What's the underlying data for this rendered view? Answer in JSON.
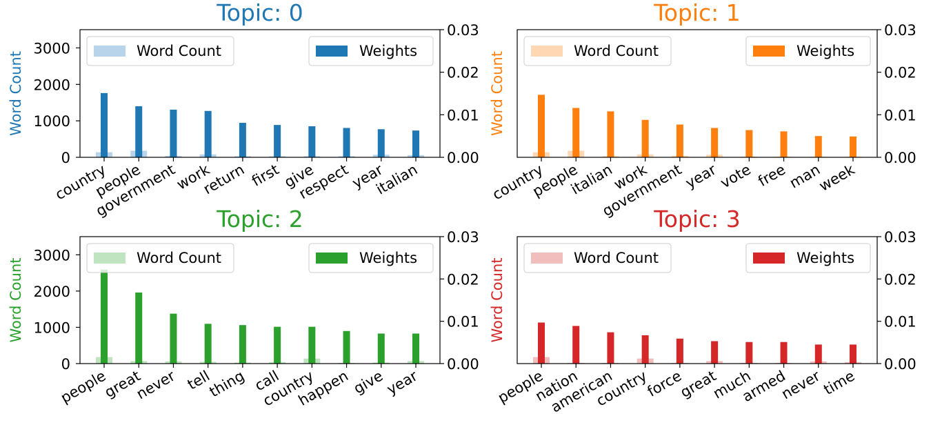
{
  "chart_data": [
    {
      "type": "bar",
      "title": "Topic: 0",
      "color": "#1f77b4",
      "light_color": "#b7d4ea",
      "ylabel": "Word Count",
      "ylim_left": [
        0,
        3500
      ],
      "yticks_left": [
        "0",
        "1000",
        "2000",
        "3000"
      ],
      "ylim_right": [
        0,
        0.03
      ],
      "yticks_right": [
        "0.00",
        "0.01",
        "0.02",
        "0.03"
      ],
      "legend_left": "Word Count",
      "legend_right": "Weights",
      "categories": [
        "country",
        "people",
        "government",
        "work",
        "return",
        "first",
        "give",
        "respect",
        "year",
        "italian"
      ],
      "series": [
        {
          "name": "Word Count",
          "values": [
            140,
            180,
            40,
            80,
            30,
            30,
            30,
            30,
            70,
            60
          ]
        },
        {
          "name": "Weights",
          "values": [
            0.0151,
            0.012,
            0.0112,
            0.0109,
            0.0081,
            0.0076,
            0.0073,
            0.0069,
            0.0066,
            0.0063
          ]
        }
      ]
    },
    {
      "type": "bar",
      "title": "Topic: 1",
      "color": "#ff7f0e",
      "light_color": "#ffd8b3",
      "ylabel": "Word Count",
      "ylim_left": [
        0,
        3500
      ],
      "yticks_left": [],
      "ylim_right": [
        0,
        0.03
      ],
      "yticks_right": [
        "0.00",
        "0.01",
        "0.02",
        "0.03"
      ],
      "legend_left": "Word Count",
      "legend_right": "Weights",
      "categories": [
        "country",
        "people",
        "italian",
        "work",
        "government",
        "year",
        "vote",
        "free",
        "man",
        "week"
      ],
      "series": [
        {
          "name": "Word Count",
          "values": [
            140,
            180,
            30,
            80,
            40,
            70,
            20,
            20,
            20,
            20
          ]
        },
        {
          "name": "Weights",
          "values": [
            0.0147,
            0.0116,
            0.0108,
            0.0088,
            0.0077,
            0.0069,
            0.0064,
            0.0061,
            0.005,
            0.0049
          ]
        }
      ]
    },
    {
      "type": "bar",
      "title": "Topic: 2",
      "color": "#2ca02c",
      "light_color": "#c0e3c0",
      "ylabel": "Word Count",
      "ylim_left": [
        0,
        3500
      ],
      "yticks_left": [
        "0",
        "1000",
        "2000",
        "3000"
      ],
      "ylim_right": [
        0,
        0.03
      ],
      "yticks_right": [
        "0.00",
        "0.01",
        "0.02",
        "0.03"
      ],
      "legend_left": "Word Count",
      "legend_right": "Weights",
      "categories": [
        "people",
        "great",
        "never",
        "tell",
        "thing",
        "call",
        "country",
        "happen",
        "give",
        "year"
      ],
      "series": [
        {
          "name": "Word Count",
          "values": [
            180,
            70,
            60,
            50,
            30,
            40,
            140,
            20,
            30,
            70
          ]
        },
        {
          "name": "Weights",
          "values": [
            0.0222,
            0.0168,
            0.0118,
            0.0094,
            0.0091,
            0.0087,
            0.0087,
            0.0077,
            0.0071,
            0.0071
          ]
        }
      ]
    },
    {
      "type": "bar",
      "title": "Topic: 3",
      "color": "#d62728",
      "light_color": "#f2bdbd",
      "ylabel": "Word Count",
      "ylim_left": [
        0,
        3500
      ],
      "yticks_left": [],
      "ylim_right": [
        0,
        0.03
      ],
      "yticks_right": [
        "0.00",
        "0.01",
        "0.02",
        "0.03"
      ],
      "legend_left": "Word Count",
      "legend_right": "Weights",
      "categories": [
        "people",
        "nation",
        "american",
        "country",
        "force",
        "great",
        "much",
        "armed",
        "never",
        "time"
      ],
      "series": [
        {
          "name": "Word Count",
          "values": [
            180,
            20,
            20,
            140,
            20,
            70,
            20,
            20,
            60,
            40
          ]
        },
        {
          "name": "Weights",
          "values": [
            0.0097,
            0.0089,
            0.0074,
            0.0067,
            0.0059,
            0.0053,
            0.0051,
            0.0051,
            0.0045,
            0.0045
          ]
        }
      ]
    }
  ]
}
